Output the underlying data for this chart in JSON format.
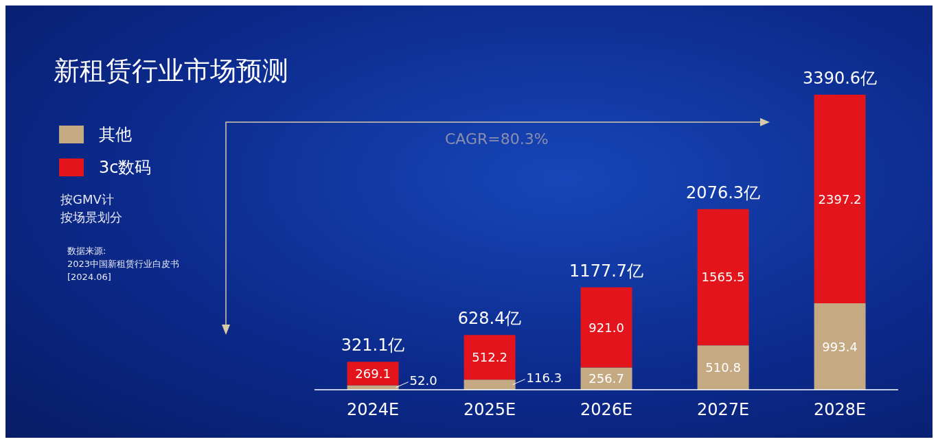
{
  "chart_data": {
    "type": "bar",
    "title": "新租赁行业市场预测",
    "categories": [
      "2024E",
      "2025E",
      "2026E",
      "2027E",
      "2028E"
    ],
    "stacked": true,
    "series": [
      {
        "name": "其他",
        "color": "#c4a982",
        "values": [
          52.0,
          116.3,
          256.7,
          510.8,
          993.4
        ],
        "value_labels": [
          "52.0",
          "116.3",
          "256.7",
          "510.8",
          "993.4"
        ]
      },
      {
        "name": "3c数码",
        "color": "#e3141b",
        "values": [
          269.1,
          512.2,
          921.0,
          1565.5,
          2397.2
        ],
        "value_labels": [
          "269.1",
          "512.2",
          "921.0",
          "1565.5",
          "2397.2"
        ]
      }
    ],
    "totals": [
      "321.1亿",
      "628.4亿",
      "1177.7亿",
      "2076.3亿",
      "3390.6亿"
    ],
    "legend": "top left",
    "annotations": [
      "CAGR=80.3%",
      "按GMV计",
      "按场景划分",
      "数据来源:",
      "2023中国新租赁行业白皮书",
      "[2024.06]"
    ]
  }
}
